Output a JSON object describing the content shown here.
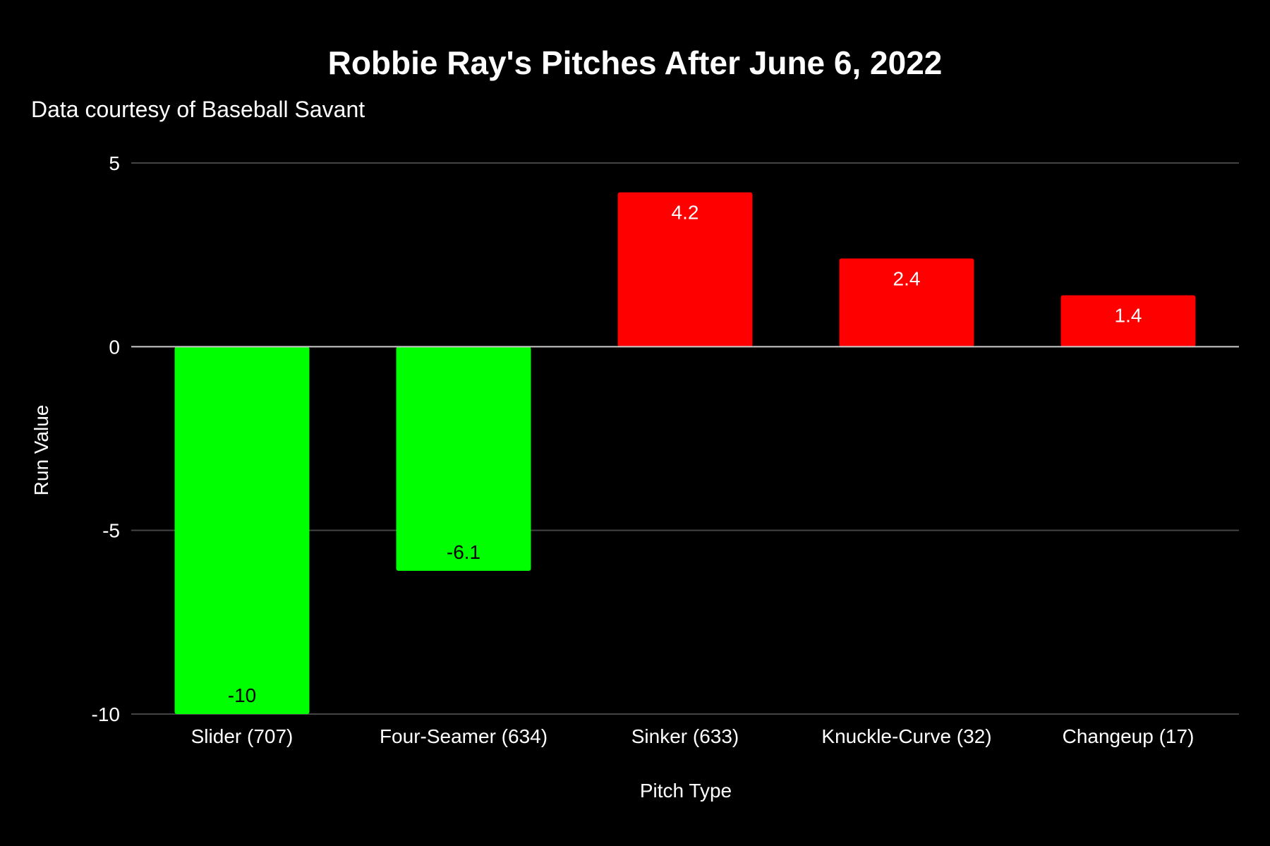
{
  "chart_data": {
    "type": "bar",
    "title": "Robbie Ray's Pitches After June 6, 2022",
    "subtitle": "Data courtesy of Baseball Savant",
    "xlabel": "Pitch Type",
    "ylabel": "Run Value",
    "categories": [
      "Slider (707)",
      "Four-Seamer (634)",
      "Sinker (633)",
      "Knuckle-Curve (32)",
      "Changeup (17)"
    ],
    "values": [
      -10,
      -6.1,
      4.2,
      2.4,
      1.4
    ],
    "data_labels": [
      "-10",
      "-6.1",
      "4.2",
      "2.4",
      "1.4"
    ],
    "ylim": [
      -10,
      5
    ],
    "yticks": [
      5,
      0,
      -5,
      -10
    ],
    "ytick_labels": [
      "5",
      "0",
      "-5",
      "-10"
    ],
    "grid": true,
    "legend": "none",
    "colors": {
      "background": "#000000",
      "negative_bar": "#00ff00",
      "positive_bar": "#ff0000",
      "negative_label": "#000000",
      "positive_label": "#ffffff",
      "gridline": "#444444",
      "zero_line": "#cccccc",
      "text": "#ffffff"
    }
  }
}
